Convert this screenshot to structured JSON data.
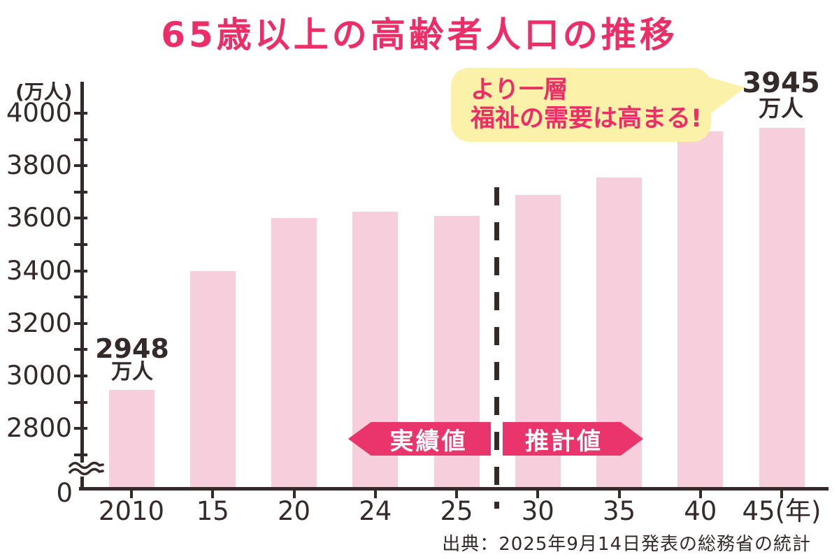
{
  "title": "65歳以上の高齢者人口の推移",
  "source": "出典：2025年9月14日発表の総務省の統計",
  "colors": {
    "accent_pink": "#ed2d67",
    "banner_pink": "#ea346c",
    "bar_fill": "#f7cfdc",
    "bubble_yellow": "#fcf1a8",
    "ink_dark": "#352a2a"
  },
  "chart_data": {
    "type": "bar",
    "title": "65歳以上の高齢者人口の推移",
    "unit_label": "(万人)",
    "xlabel": "年",
    "ylabel": "万人",
    "categories": [
      "2010",
      "15",
      "20",
      "24",
      "25",
      "30",
      "35",
      "40",
      "45(年)"
    ],
    "values": [
      2948,
      3400,
      3600,
      3625,
      3610,
      3690,
      3755,
      3930,
      3945
    ],
    "y_major_ticks": [
      2800,
      3000,
      3200,
      3400,
      3600,
      3800,
      4000
    ],
    "y_minor_step": 100,
    "ylim_displayed": [
      2700,
      4000
    ],
    "axis_break": true,
    "origin_label": "0",
    "grid": false,
    "legend_position": "none",
    "segments": {
      "actual": {
        "label": "実績値",
        "categories": [
          "2010",
          "15",
          "20",
          "24",
          "25"
        ]
      },
      "estimate": {
        "label": "推計値",
        "categories": [
          "30",
          "35",
          "40",
          "45"
        ]
      },
      "divider_between": [
        "25",
        "30"
      ]
    },
    "annotations": {
      "first_bar": {
        "value": "2948",
        "unit": "万人"
      },
      "last_bar": {
        "value": "3945",
        "unit": "万人"
      },
      "bubble": {
        "line1": "より一層",
        "line2": "福祉の需要は高まる!"
      }
    }
  }
}
